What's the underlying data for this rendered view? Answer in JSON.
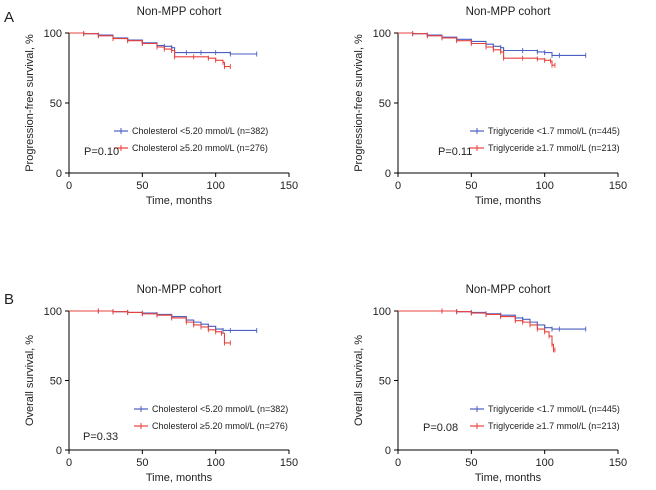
{
  "panel_labels": [
    "A",
    "B"
  ],
  "colors": {
    "low": "#4a5fc1",
    "high": "#e8413c"
  },
  "chart_data": [
    {
      "type": "line",
      "title": "Non-MPP cohort",
      "xlabel": "Time, months",
      "ylabel": "Progression-free survival, %",
      "xlim": [
        0,
        150
      ],
      "ylim": [
        0,
        100
      ],
      "xticks": [
        0,
        50,
        100,
        150
      ],
      "yticks": [
        0,
        50,
        100
      ],
      "p_value": "P=0.10",
      "series": [
        {
          "name": "Cholesterol <5.20 mmol/L (n=382)",
          "color": "#4a5fc1",
          "points": [
            [
              0,
              100
            ],
            [
              10,
              99.5
            ],
            [
              20,
              98.5
            ],
            [
              30,
              96.5
            ],
            [
              40,
              95
            ],
            [
              50,
              93
            ],
            [
              60,
              91
            ],
            [
              65,
              90.5
            ],
            [
              70,
              89.5
            ],
            [
              72,
              86
            ],
            [
              80,
              86
            ],
            [
              90,
              86
            ],
            [
              100,
              86
            ],
            [
              110,
              85
            ],
            [
              128,
              85
            ]
          ]
        },
        {
          "name": "Cholesterol ≥5.20 mmol/L (n=276)",
          "color": "#e8413c",
          "points": [
            [
              0,
              100
            ],
            [
              10,
              99.5
            ],
            [
              20,
              98
            ],
            [
              30,
              96
            ],
            [
              40,
              94.5
            ],
            [
              50,
              92.5
            ],
            [
              60,
              90
            ],
            [
              65,
              88.5
            ],
            [
              70,
              87.5
            ],
            [
              72,
              83
            ],
            [
              85,
              83
            ],
            [
              95,
              82
            ],
            [
              100,
              80.5
            ],
            [
              105,
              79
            ],
            [
              106,
              76
            ],
            [
              110,
              76
            ]
          ]
        }
      ]
    },
    {
      "type": "line",
      "title": "Non-MPP cohort",
      "xlabel": "Time, months",
      "ylabel": "Progression-free survival, %",
      "xlim": [
        0,
        150
      ],
      "ylim": [
        0,
        100
      ],
      "xticks": [
        0,
        50,
        100,
        150
      ],
      "yticks": [
        0,
        50,
        100
      ],
      "p_value": "P=0.11",
      "series": [
        {
          "name": "Triglyceride <1.7 mmol/L (n=445)",
          "color": "#4a5fc1",
          "points": [
            [
              0,
              100
            ],
            [
              10,
              99.5
            ],
            [
              20,
              98.5
            ],
            [
              30,
              97
            ],
            [
              40,
              95.5
            ],
            [
              50,
              94
            ],
            [
              60,
              92
            ],
            [
              65,
              90.5
            ],
            [
              70,
              89.5
            ],
            [
              72,
              87.5
            ],
            [
              85,
              87.5
            ],
            [
              95,
              86.5
            ],
            [
              100,
              86
            ],
            [
              105,
              84
            ],
            [
              110,
              84
            ],
            [
              128,
              84
            ]
          ]
        },
        {
          "name": "Triglyceride ≥1.7 mmol/L (n=213)",
          "color": "#e8413c",
          "points": [
            [
              0,
              100
            ],
            [
              10,
              99.5
            ],
            [
              20,
              98
            ],
            [
              30,
              96.5
            ],
            [
              40,
              94.5
            ],
            [
              50,
              92.5
            ],
            [
              60,
              90
            ],
            [
              65,
              88
            ],
            [
              70,
              86.5
            ],
            [
              72,
              82
            ],
            [
              85,
              82
            ],
            [
              95,
              81.5
            ],
            [
              100,
              80.5
            ],
            [
              104,
              80
            ],
            [
              105,
              77
            ],
            [
              107,
              77
            ]
          ]
        }
      ]
    },
    {
      "type": "line",
      "title": "Non-MPP cohort",
      "xlabel": "Time, months",
      "ylabel": "Overall survival, %",
      "xlim": [
        0,
        150
      ],
      "ylim": [
        0,
        100
      ],
      "xticks": [
        0,
        50,
        100,
        150
      ],
      "yticks": [
        0,
        50,
        100
      ],
      "p_value": "P=0.33",
      "series": [
        {
          "name": "Cholesterol <5.20 mmol/L (n=382)",
          "color": "#4a5fc1",
          "points": [
            [
              0,
              100
            ],
            [
              20,
              100
            ],
            [
              30,
              99.5
            ],
            [
              40,
              99
            ],
            [
              50,
              98.5
            ],
            [
              60,
              97.5
            ],
            [
              70,
              96
            ],
            [
              80,
              93.5
            ],
            [
              85,
              92
            ],
            [
              90,
              90.5
            ],
            [
              95,
              89
            ],
            [
              100,
              87
            ],
            [
              105,
              86
            ],
            [
              110,
              86
            ],
            [
              128,
              86
            ]
          ]
        },
        {
          "name": "Cholesterol ≥5.20 mmol/L (n=276)",
          "color": "#e8413c",
          "points": [
            [
              0,
              100
            ],
            [
              20,
              100
            ],
            [
              30,
              99.5
            ],
            [
              40,
              99
            ],
            [
              50,
              98
            ],
            [
              60,
              97
            ],
            [
              70,
              95
            ],
            [
              80,
              92
            ],
            [
              85,
              90
            ],
            [
              90,
              88.5
            ],
            [
              95,
              86.5
            ],
            [
              100,
              85
            ],
            [
              104,
              84
            ],
            [
              106,
              77
            ],
            [
              110,
              77
            ]
          ]
        }
      ]
    },
    {
      "type": "line",
      "title": "Non-MPP cohort",
      "xlabel": "Time, months",
      "ylabel": "Overall survival, %",
      "xlim": [
        0,
        150
      ],
      "ylim": [
        0,
        100
      ],
      "xticks": [
        0,
        50,
        100,
        150
      ],
      "yticks": [
        0,
        50,
        100
      ],
      "p_value": "P=0.08",
      "series": [
        {
          "name": "Triglyceride <1.7 mmol/L (n=445)",
          "color": "#4a5fc1",
          "points": [
            [
              0,
              100
            ],
            [
              30,
              100
            ],
            [
              40,
              99.5
            ],
            [
              50,
              99
            ],
            [
              60,
              98
            ],
            [
              70,
              97
            ],
            [
              80,
              95
            ],
            [
              85,
              94
            ],
            [
              90,
              92
            ],
            [
              95,
              90
            ],
            [
              100,
              88
            ],
            [
              105,
              87
            ],
            [
              110,
              87
            ],
            [
              128,
              87
            ]
          ]
        },
        {
          "name": "Triglyceride ≥1.7 mmol/L (n=213)",
          "color": "#e8413c",
          "points": [
            [
              0,
              100
            ],
            [
              30,
              100
            ],
            [
              40,
              99.5
            ],
            [
              50,
              98.5
            ],
            [
              60,
              97.5
            ],
            [
              70,
              96
            ],
            [
              80,
              93
            ],
            [
              85,
              92
            ],
            [
              90,
              90
            ],
            [
              95,
              87
            ],
            [
              100,
              85
            ],
            [
              103,
              82
            ],
            [
              105,
              76
            ],
            [
              106,
              72
            ],
            [
              107,
              72
            ]
          ]
        }
      ]
    }
  ]
}
